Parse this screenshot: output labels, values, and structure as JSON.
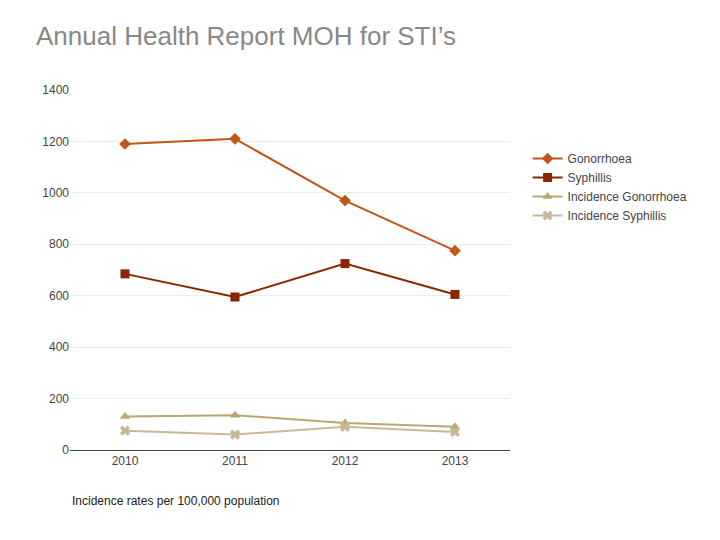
{
  "chart_data": {
    "type": "line",
    "title": "Annual Health Report MOH for STI’s",
    "footnote": "Incidence rates per 100,000 population",
    "x": [
      2010,
      2011,
      2012,
      2013
    ],
    "series": [
      {
        "name": "Gonorrhoea",
        "values": [
          1190,
          1210,
          970,
          775
        ],
        "color": "#C0561A",
        "marker": "diamond"
      },
      {
        "name": "Syphillis",
        "values": [
          685,
          595,
          725,
          605
        ],
        "color": "#8B2500",
        "marker": "square"
      },
      {
        "name": "Incidence Gonorrhoea",
        "values": [
          130,
          135,
          105,
          90
        ],
        "color": "#B8A870",
        "marker": "triangle-up"
      },
      {
        "name": "Incidence Syphillis",
        "values": [
          75,
          60,
          90,
          70
        ],
        "color": "#C8B898",
        "marker": "x"
      }
    ],
    "xlim": [
      2009.5,
      2013.5
    ],
    "xticks": [
      2010,
      2011,
      2012,
      2013
    ],
    "ylim": [
      0,
      1400
    ],
    "yticks": [
      0,
      200,
      400,
      600,
      800,
      1000,
      1200,
      1400
    ],
    "grid": true,
    "legend": "right"
  }
}
